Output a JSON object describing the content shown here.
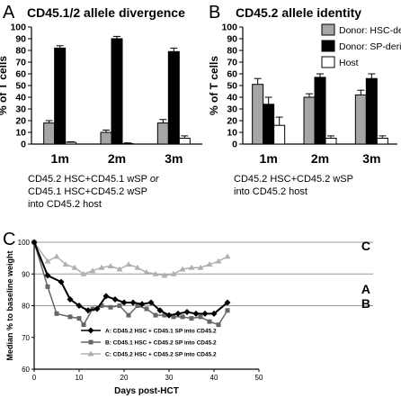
{
  "panels": {
    "a": {
      "letter": "A",
      "title": "CD45.1/2 allele divergence",
      "caption": [
        "CD45.2 HSC+CD45.1 wSP",
        "or",
        "CD45.1 HSC+CD45.2 wSP",
        "into CD45.2 host"
      ]
    },
    "b": {
      "letter": "B",
      "title": "CD45.2 allele identity",
      "caption": [
        "CD45.2 HSC+CD45.2 wSP",
        "into CD45.2 host"
      ]
    },
    "c": {
      "letter": "C"
    }
  },
  "colors": {
    "hsc": "#a6a6a6",
    "sp": "#000000",
    "host": "#ffffff",
    "line_a": "#000000",
    "line_b": "#666666",
    "line_c": "#b0b0b0"
  },
  "chart_data": [
    {
      "id": "A",
      "type": "bar",
      "title": "CD45.1/2 allele divergence",
      "ylabel": "% of T cells",
      "ylim": [
        0,
        100
      ],
      "yticks": [
        0,
        10,
        20,
        30,
        40,
        50,
        60,
        70,
        80,
        90,
        100
      ],
      "categories": [
        "1m",
        "2m",
        "3m"
      ],
      "series": [
        {
          "key": "hsc",
          "values": [
            18,
            10,
            18
          ],
          "errors": [
            2,
            2,
            3
          ]
        },
        {
          "key": "sp",
          "values": [
            82,
            90,
            79
          ],
          "errors": [
            2,
            2,
            3
          ]
        },
        {
          "key": "host",
          "values": [
            1.5,
            0.5,
            5
          ],
          "errors": [
            0.5,
            0.5,
            2
          ]
        }
      ]
    },
    {
      "id": "B",
      "type": "bar",
      "title": "CD45.2 allele identity",
      "ylabel": "% of T cells",
      "ylim": [
        0,
        100
      ],
      "yticks": [
        0,
        10,
        20,
        30,
        40,
        50,
        60,
        70,
        80,
        90,
        100
      ],
      "categories": [
        "1m",
        "2m",
        "3m"
      ],
      "legend_position": "top-right",
      "series": [
        {
          "key": "hsc",
          "name": "Donor: HSC-derived",
          "values": [
            51,
            40,
            42
          ],
          "errors": [
            5,
            3,
            4
          ]
        },
        {
          "key": "sp",
          "name": "Donor: SP-derived",
          "values": [
            34,
            57,
            56
          ],
          "errors": [
            6,
            3,
            4
          ]
        },
        {
          "key": "host",
          "name": "Host",
          "values": [
            16,
            5,
            5
          ],
          "errors": [
            7,
            2,
            2
          ]
        }
      ]
    },
    {
      "id": "C",
      "type": "line",
      "xlabel": "Days post-HCT",
      "ylabel": "Median % to baseline weight",
      "xlim": [
        0,
        50
      ],
      "ylim": [
        60,
        100
      ],
      "xticks": [
        0,
        10,
        20,
        30,
        40,
        50
      ],
      "yticks": [
        60,
        70,
        80,
        90,
        100
      ],
      "grid_y": [
        80,
        90,
        100
      ],
      "legend_position": "bottom-center",
      "series": [
        {
          "key": "line_a",
          "end_label": "A",
          "marker": "diamond",
          "name": "A: CD45.2 HSC + CD45.1 SP into CD45.2",
          "x": [
            0,
            3,
            6,
            8,
            10,
            12,
            14,
            16,
            18,
            20,
            22,
            24,
            26,
            28,
            30,
            32,
            34,
            36,
            38,
            40,
            43
          ],
          "y": [
            100,
            89.5,
            87.5,
            82,
            80,
            78.5,
            79,
            83,
            82,
            81,
            81,
            80.5,
            81,
            78.5,
            77,
            77.5,
            78,
            77.5,
            77.5,
            77.5,
            81
          ]
        },
        {
          "key": "line_b",
          "end_label": "B",
          "marker": "square",
          "name": "B: CD45.1 HSC + CD45.2 SP into CD45.2",
          "x": [
            0,
            3,
            5,
            8,
            10,
            11,
            13,
            15,
            17,
            19,
            21,
            23,
            25,
            27,
            29,
            31,
            33,
            35,
            37,
            39,
            41,
            43
          ],
          "y": [
            100,
            86,
            77.5,
            76.5,
            76,
            74,
            79,
            80,
            79.5,
            80,
            77,
            80,
            79,
            77,
            77,
            76.5,
            76.5,
            76,
            76.5,
            75,
            74,
            78.5
          ]
        },
        {
          "key": "line_c",
          "end_label": "C",
          "marker": "triangle",
          "name": "C: CD45.2 HSC + CD45.2 SP into CD45.2",
          "x": [
            0,
            3,
            5,
            7,
            9,
            11,
            13,
            15,
            17,
            19,
            21,
            23,
            25,
            27,
            29,
            31,
            33,
            35,
            37,
            39,
            41,
            43
          ],
          "y": [
            100,
            94,
            95.5,
            93,
            92,
            90,
            91,
            92,
            92.5,
            91.5,
            93,
            92,
            90.5,
            90,
            89.5,
            90,
            91.5,
            92,
            92,
            93,
            94,
            95.5
          ]
        }
      ]
    }
  ]
}
